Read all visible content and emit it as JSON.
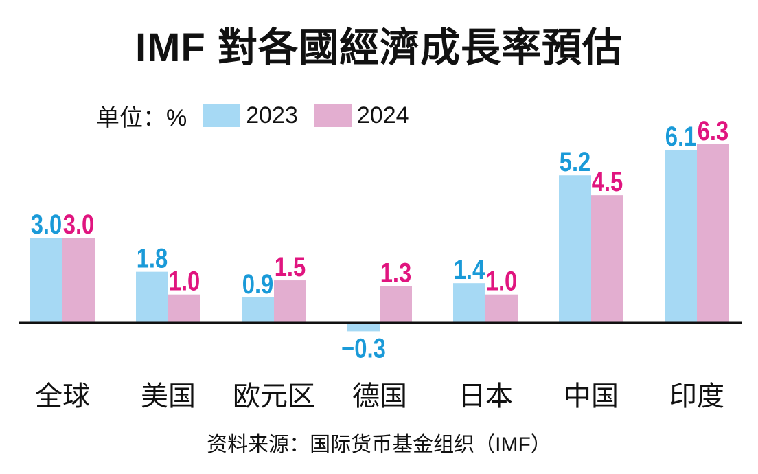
{
  "title": "IMF 對各國經濟成長率預估",
  "legend": {
    "unit": "单位：%"
  },
  "source": "资料来源：国际货币基金组织（IMF）",
  "colors": {
    "bar_2023": "#a6d9f4",
    "bar_2024": "#e3aed0",
    "label_2023": "#1a9ad8",
    "label_2024": "#e0157f",
    "axis": "#111111"
  },
  "chart_data": {
    "type": "bar",
    "title": "IMF 對各國經濟成長率預估",
    "unit": "单位：%",
    "categories": [
      "全球",
      "美国",
      "欧元区",
      "德国",
      "日本",
      "中国",
      "印度"
    ],
    "series": [
      {
        "name": "2023",
        "values": [
          3.0,
          1.8,
          0.9,
          -0.3,
          1.4,
          5.2,
          6.1
        ]
      },
      {
        "name": "2024",
        "values": [
          3.0,
          1.0,
          1.5,
          1.3,
          1.0,
          4.5,
          6.3
        ]
      }
    ],
    "legend_position": "top-left",
    "grid": false,
    "data_labels": true
  }
}
